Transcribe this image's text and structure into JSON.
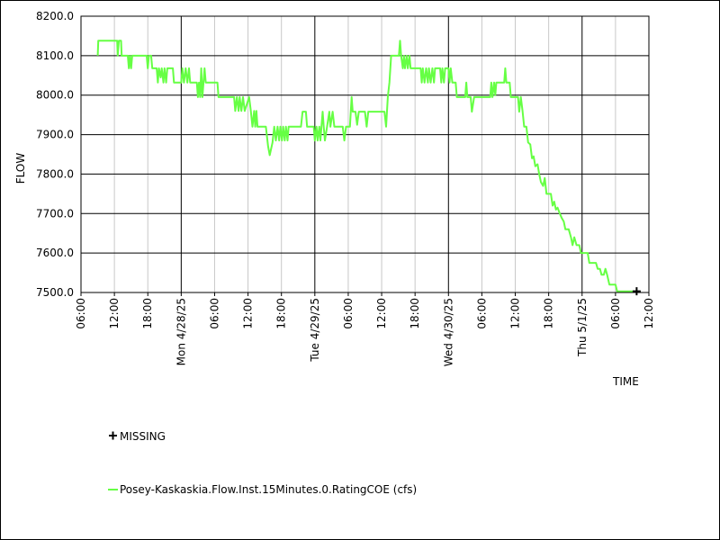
{
  "chart_data": {
    "type": "line",
    "title": "",
    "xlabel": "TIME",
    "ylabel": "FLOW",
    "ylim": [
      7500,
      8200
    ],
    "y_ticks": [
      8200,
      8100,
      8000,
      7900,
      7800,
      7700,
      7600,
      7500
    ],
    "y_tick_labels": [
      "8200.0",
      "8100.0",
      "8000.0",
      "7900.0",
      "7800.0",
      "7700.0",
      "7600.0",
      "7500.0"
    ],
    "x_unit": "hours since 06:00 on 4/27/25",
    "xlim": [
      0,
      102
    ],
    "x_ticks": [
      {
        "x": 0,
        "label": "06:00",
        "major": false
      },
      {
        "x": 6,
        "label": "12:00",
        "major": false
      },
      {
        "x": 12,
        "label": "18:00",
        "major": false
      },
      {
        "x": 18,
        "label": "Mon 4/28/25",
        "major": true
      },
      {
        "x": 24,
        "label": "06:00",
        "major": false
      },
      {
        "x": 30,
        "label": "12:00",
        "major": false
      },
      {
        "x": 36,
        "label": "18:00",
        "major": false
      },
      {
        "x": 42,
        "label": "Tue 4/29/25",
        "major": true
      },
      {
        "x": 48,
        "label": "06:00",
        "major": false
      },
      {
        "x": 54,
        "label": "12:00",
        "major": false
      },
      {
        "x": 60,
        "label": "18:00",
        "major": false
      },
      {
        "x": 66,
        "label": "Wed 4/30/25",
        "major": true
      },
      {
        "x": 72,
        "label": "06:00",
        "major": false
      },
      {
        "x": 78,
        "label": "12:00",
        "major": false
      },
      {
        "x": 84,
        "label": "18:00",
        "major": false
      },
      {
        "x": 90,
        "label": "Thu 5/1/25",
        "major": true
      },
      {
        "x": 96,
        "label": "06:00",
        "major": false
      },
      {
        "x": 102,
        "label": "12:00",
        "major": false
      }
    ],
    "grid": true,
    "legend": [
      {
        "label": "MISSING",
        "marker": "plus",
        "color": "#000000"
      },
      {
        "label": "Posey-Kaskaskia.Flow.Inst.15Minutes.0.RatingCOE (cfs)",
        "marker": "line",
        "color": "#66ff44"
      }
    ],
    "missing_points": [
      {
        "x": 99.8,
        "y": 7503
      }
    ],
    "series": [
      {
        "name": "Posey-Kaskaskia.Flow.Inst.15Minutes.0.RatingCOE (cfs)",
        "color": "#66ff44",
        "points": [
          [
            3.0,
            8100
          ],
          [
            3.1,
            8138
          ],
          [
            6.5,
            8138
          ],
          [
            6.6,
            8100
          ],
          [
            6.8,
            8138
          ],
          [
            7.2,
            8138
          ],
          [
            7.3,
            8100
          ],
          [
            8.4,
            8100
          ],
          [
            8.6,
            8068
          ],
          [
            8.8,
            8100
          ],
          [
            9.0,
            8068
          ],
          [
            9.2,
            8100
          ],
          [
            11.8,
            8100
          ],
          [
            12.0,
            8068
          ],
          [
            12.2,
            8100
          ],
          [
            12.6,
            8100
          ],
          [
            12.8,
            8068
          ],
          [
            13.6,
            8068
          ],
          [
            13.8,
            8032
          ],
          [
            14.0,
            8068
          ],
          [
            14.3,
            8045
          ],
          [
            14.5,
            8068
          ],
          [
            14.8,
            8032
          ],
          [
            15.0,
            8068
          ],
          [
            15.3,
            8032
          ],
          [
            15.5,
            8068
          ],
          [
            16.5,
            8068
          ],
          [
            16.7,
            8032
          ],
          [
            18.0,
            8032
          ],
          [
            18.2,
            8068
          ],
          [
            18.5,
            8032
          ],
          [
            18.8,
            8068
          ],
          [
            19.1,
            8032
          ],
          [
            19.4,
            8068
          ],
          [
            19.6,
            8032
          ],
          [
            20.8,
            8032
          ],
          [
            21.0,
            7995
          ],
          [
            21.2,
            8032
          ],
          [
            21.4,
            7995
          ],
          [
            21.6,
            8068
          ],
          [
            21.8,
            7995
          ],
          [
            22.0,
            8032
          ],
          [
            22.2,
            8068
          ],
          [
            22.4,
            8032
          ],
          [
            24.5,
            8032
          ],
          [
            24.7,
            7995
          ],
          [
            27.5,
            7995
          ],
          [
            27.7,
            7960
          ],
          [
            28.0,
            7995
          ],
          [
            28.3,
            7960
          ],
          [
            28.5,
            7995
          ],
          [
            28.8,
            7960
          ],
          [
            29.1,
            7995
          ],
          [
            29.4,
            7960
          ],
          [
            30.2,
            7995
          ],
          [
            30.5,
            7960
          ],
          [
            30.8,
            7920
          ],
          [
            31.1,
            7960
          ],
          [
            31.3,
            7920
          ],
          [
            31.5,
            7960
          ],
          [
            31.7,
            7920
          ],
          [
            33.2,
            7920
          ],
          [
            33.6,
            7870
          ],
          [
            33.9,
            7848
          ],
          [
            34.4,
            7880
          ],
          [
            34.7,
            7920
          ],
          [
            35.0,
            7885
          ],
          [
            35.3,
            7920
          ],
          [
            35.6,
            7885
          ],
          [
            35.8,
            7920
          ],
          [
            36.1,
            7885
          ],
          [
            36.3,
            7920
          ],
          [
            36.6,
            7885
          ],
          [
            36.8,
            7920
          ],
          [
            37.1,
            7885
          ],
          [
            37.3,
            7920
          ],
          [
            39.5,
            7920
          ],
          [
            39.8,
            7958
          ],
          [
            40.4,
            7958
          ],
          [
            40.6,
            7920
          ],
          [
            41.8,
            7920
          ],
          [
            42.0,
            7885
          ],
          [
            42.3,
            7920
          ],
          [
            42.5,
            7885
          ],
          [
            42.8,
            7920
          ],
          [
            43.0,
            7885
          ],
          [
            43.4,
            7958
          ],
          [
            43.6,
            7920
          ],
          [
            43.8,
            7885
          ],
          [
            44.2,
            7920
          ],
          [
            44.6,
            7958
          ],
          [
            44.8,
            7920
          ],
          [
            45.2,
            7958
          ],
          [
            45.5,
            7920
          ],
          [
            47.0,
            7920
          ],
          [
            47.3,
            7885
          ],
          [
            47.6,
            7920
          ],
          [
            48.3,
            7920
          ],
          [
            48.6,
            7995
          ],
          [
            48.8,
            7958
          ],
          [
            49.3,
            7958
          ],
          [
            49.6,
            7925
          ],
          [
            49.9,
            7958
          ],
          [
            51.0,
            7958
          ],
          [
            51.3,
            7920
          ],
          [
            51.6,
            7958
          ],
          [
            54.5,
            7958
          ],
          [
            54.8,
            7920
          ],
          [
            55.1,
            7995
          ],
          [
            55.4,
            8032
          ],
          [
            55.7,
            8100
          ],
          [
            56.0,
            8100
          ],
          [
            56.3,
            8100
          ],
          [
            57.1,
            8100
          ],
          [
            57.3,
            8138
          ],
          [
            57.5,
            8100
          ],
          [
            57.8,
            8068
          ],
          [
            58.0,
            8100
          ],
          [
            58.2,
            8068
          ],
          [
            58.5,
            8100
          ],
          [
            58.7,
            8068
          ],
          [
            59.0,
            8100
          ],
          [
            59.2,
            8068
          ],
          [
            61.0,
            8068
          ],
          [
            61.2,
            8032
          ],
          [
            61.4,
            8068
          ],
          [
            61.7,
            8032
          ],
          [
            62.0,
            8068
          ],
          [
            62.3,
            8032
          ],
          [
            62.5,
            8068
          ],
          [
            62.8,
            8032
          ],
          [
            63.1,
            8068
          ],
          [
            63.4,
            8032
          ],
          [
            63.6,
            8068
          ],
          [
            64.5,
            8068
          ],
          [
            64.7,
            8032
          ],
          [
            64.9,
            8068
          ],
          [
            65.2,
            8032
          ],
          [
            65.4,
            8068
          ],
          [
            66.0,
            8068
          ],
          [
            66.2,
            8032
          ],
          [
            66.4,
            8068
          ],
          [
            66.7,
            8032
          ],
          [
            67.3,
            8032
          ],
          [
            67.5,
            7995
          ],
          [
            69.0,
            7995
          ],
          [
            69.2,
            8032
          ],
          [
            69.4,
            7995
          ],
          [
            70.0,
            7995
          ],
          [
            70.2,
            7958
          ],
          [
            70.6,
            7995
          ],
          [
            73.5,
            7995
          ],
          [
            73.7,
            8032
          ],
          [
            73.9,
            7995
          ],
          [
            74.2,
            8032
          ],
          [
            74.4,
            8000
          ],
          [
            74.6,
            8032
          ],
          [
            76.0,
            8032
          ],
          [
            76.2,
            8068
          ],
          [
            76.4,
            8032
          ],
          [
            77.0,
            8032
          ],
          [
            77.2,
            7995
          ],
          [
            78.5,
            7995
          ],
          [
            78.7,
            7958
          ],
          [
            79.0,
            7995
          ],
          [
            79.3,
            7960
          ],
          [
            79.6,
            7920
          ],
          [
            80.0,
            7920
          ],
          [
            80.3,
            7880
          ],
          [
            80.7,
            7875
          ],
          [
            81.0,
            7840
          ],
          [
            81.3,
            7845
          ],
          [
            81.6,
            7820
          ],
          [
            82.0,
            7825
          ],
          [
            82.3,
            7800
          ],
          [
            82.6,
            7780
          ],
          [
            83.0,
            7770
          ],
          [
            83.3,
            7790
          ],
          [
            83.6,
            7750
          ],
          [
            84.4,
            7750
          ],
          [
            84.7,
            7720
          ],
          [
            85.0,
            7730
          ],
          [
            85.3,
            7710
          ],
          [
            85.6,
            7715
          ],
          [
            86.0,
            7700
          ],
          [
            86.3,
            7690
          ],
          [
            86.7,
            7680
          ],
          [
            87.0,
            7660
          ],
          [
            87.6,
            7660
          ],
          [
            88.0,
            7640
          ],
          [
            88.3,
            7620
          ],
          [
            88.6,
            7640
          ],
          [
            89.0,
            7620
          ],
          [
            89.5,
            7620
          ],
          [
            89.8,
            7600
          ],
          [
            91.0,
            7600
          ],
          [
            91.3,
            7575
          ],
          [
            92.5,
            7575
          ],
          [
            92.8,
            7560
          ],
          [
            93.2,
            7560
          ],
          [
            93.5,
            7545
          ],
          [
            93.9,
            7545
          ],
          [
            94.2,
            7560
          ],
          [
            94.5,
            7545
          ],
          [
            94.9,
            7520
          ],
          [
            96.0,
            7520
          ],
          [
            96.3,
            7503
          ],
          [
            99.8,
            7503
          ]
        ]
      }
    ]
  }
}
